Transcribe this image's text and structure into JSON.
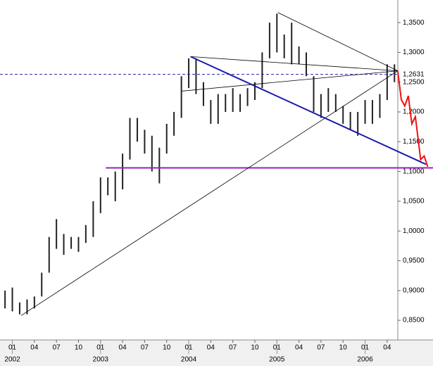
{
  "chart_data": {
    "type": "hilo",
    "x": [
      2001.917,
      2002.0,
      2002.083,
      2002.167,
      2002.25,
      2002.333,
      2002.417,
      2002.5,
      2002.583,
      2002.667,
      2002.75,
      2002.833,
      2002.917,
      2003.0,
      2003.083,
      2003.167,
      2003.25,
      2003.333,
      2003.417,
      2003.5,
      2003.583,
      2003.667,
      2003.75,
      2003.833,
      2003.917,
      2004.0,
      2004.083,
      2004.167,
      2004.25,
      2004.333,
      2004.417,
      2004.5,
      2004.583,
      2004.667,
      2004.75,
      2004.833,
      2004.917,
      2005.0,
      2005.083,
      2005.167,
      2005.25,
      2005.333,
      2005.417,
      2005.5,
      2005.583,
      2005.667,
      2005.75,
      2005.833,
      2005.917,
      2006.0,
      2006.083,
      2006.167,
      2006.25,
      2006.333
    ],
    "high": [
      0.9,
      0.905,
      0.88,
      0.885,
      0.89,
      0.93,
      0.99,
      1.02,
      0.995,
      0.99,
      0.99,
      1.01,
      1.05,
      1.09,
      1.09,
      1.1,
      1.13,
      1.19,
      1.19,
      1.17,
      1.16,
      1.14,
      1.18,
      1.2,
      1.26,
      1.29,
      1.29,
      1.25,
      1.22,
      1.23,
      1.23,
      1.24,
      1.23,
      1.24,
      1.25,
      1.3,
      1.35,
      1.365,
      1.33,
      1.35,
      1.31,
      1.3,
      1.26,
      1.23,
      1.24,
      1.23,
      1.21,
      1.2,
      1.2,
      1.22,
      1.22,
      1.23,
      1.28,
      1.28
    ],
    "low": [
      0.87,
      0.865,
      0.86,
      0.86,
      0.87,
      0.89,
      0.93,
      0.97,
      0.96,
      0.97,
      0.965,
      0.98,
      0.99,
      1.03,
      1.06,
      1.05,
      1.07,
      1.12,
      1.15,
      1.13,
      1.1,
      1.08,
      1.13,
      1.16,
      1.19,
      1.24,
      1.23,
      1.21,
      1.18,
      1.18,
      1.2,
      1.2,
      1.2,
      1.21,
      1.22,
      1.24,
      1.29,
      1.3,
      1.29,
      1.28,
      1.28,
      1.26,
      1.2,
      1.19,
      1.2,
      1.2,
      1.18,
      1.17,
      1.16,
      1.18,
      1.18,
      1.19,
      1.22,
      1.25
    ],
    "color": "#222222",
    "xlim": [
      2001.86,
      2006.77
    ],
    "ylim": [
      0.817,
      1.388
    ],
    "yticks": [
      {
        "value": 0.85,
        "label": "0,8500"
      },
      {
        "value": 0.9,
        "label": "0,9000"
      },
      {
        "value": 0.95,
        "label": "0,9500"
      },
      {
        "value": 1.0,
        "label": "1,0000"
      },
      {
        "value": 1.05,
        "label": "1,0500"
      },
      {
        "value": 1.1,
        "label": "1,1000"
      },
      {
        "value": 1.15,
        "label": "1,1500"
      },
      {
        "value": 1.2,
        "label": "1,2000"
      },
      {
        "value": 1.25,
        "label": "1,2500"
      },
      {
        "value": 1.3,
        "label": "1,3000"
      },
      {
        "value": 1.35,
        "label": "1,3500"
      }
    ],
    "xticks": [
      {
        "value": 2002.0,
        "label": "01"
      },
      {
        "value": 2002.25,
        "label": "04"
      },
      {
        "value": 2002.5,
        "label": "07"
      },
      {
        "value": 2002.75,
        "label": "10"
      },
      {
        "value": 2003.0,
        "label": "01"
      },
      {
        "value": 2003.25,
        "label": "04"
      },
      {
        "value": 2003.5,
        "label": "07"
      },
      {
        "value": 2003.75,
        "label": "10"
      },
      {
        "value": 2004.0,
        "label": "01"
      },
      {
        "value": 2004.25,
        "label": "04"
      },
      {
        "value": 2004.5,
        "label": "07"
      },
      {
        "value": 2004.75,
        "label": "10"
      },
      {
        "value": 2005.0,
        "label": "01"
      },
      {
        "value": 2005.25,
        "label": "04"
      },
      {
        "value": 2005.5,
        "label": "07"
      },
      {
        "value": 2005.75,
        "label": "10"
      },
      {
        "value": 2006.0,
        "label": "01"
      },
      {
        "value": 2006.25,
        "label": "04"
      }
    ],
    "year_labels": [
      {
        "value": 2002.0,
        "label": "2002"
      },
      {
        "value": 2003.0,
        "label": "2003"
      },
      {
        "value": 2004.0,
        "label": "2004"
      },
      {
        "value": 2005.0,
        "label": "2005"
      },
      {
        "value": 2006.0,
        "label": "2006"
      }
    ],
    "reference_line": {
      "value": 1.2631,
      "label": "1,2631",
      "color": "#2222aa"
    },
    "support_line": {
      "value": 1.106,
      "from": 2003.06,
      "to": 2006.77,
      "color": "#9922bb"
    },
    "trendlines": [
      {
        "color": "#000000",
        "points": [
          [
            2002.1,
            0.858
          ],
          [
            2006.37,
            1.269
          ]
        ]
      },
      {
        "color": "#000000",
        "points": [
          [
            2005.01,
            1.367
          ],
          [
            2006.37,
            1.269
          ]
        ]
      },
      {
        "color": "#000000",
        "points": [
          [
            2004.02,
            1.293
          ],
          [
            2006.37,
            1.269
          ]
        ]
      },
      {
        "color": "#000000",
        "points": [
          [
            2003.92,
            1.235
          ],
          [
            2006.37,
            1.269
          ]
        ]
      },
      {
        "color": "#1a1aaa",
        "points": [
          [
            2004.02,
            1.293
          ],
          [
            2006.69,
            1.112
          ]
        ]
      }
    ],
    "forecast": {
      "color": "#ee1111",
      "x": [
        2006.37,
        2006.41,
        2006.45,
        2006.49,
        2006.53,
        2006.57,
        2006.63,
        2006.67,
        2006.71
      ],
      "values": [
        1.269,
        1.221,
        1.21,
        1.227,
        1.18,
        1.192,
        1.12,
        1.126,
        1.108
      ]
    }
  }
}
